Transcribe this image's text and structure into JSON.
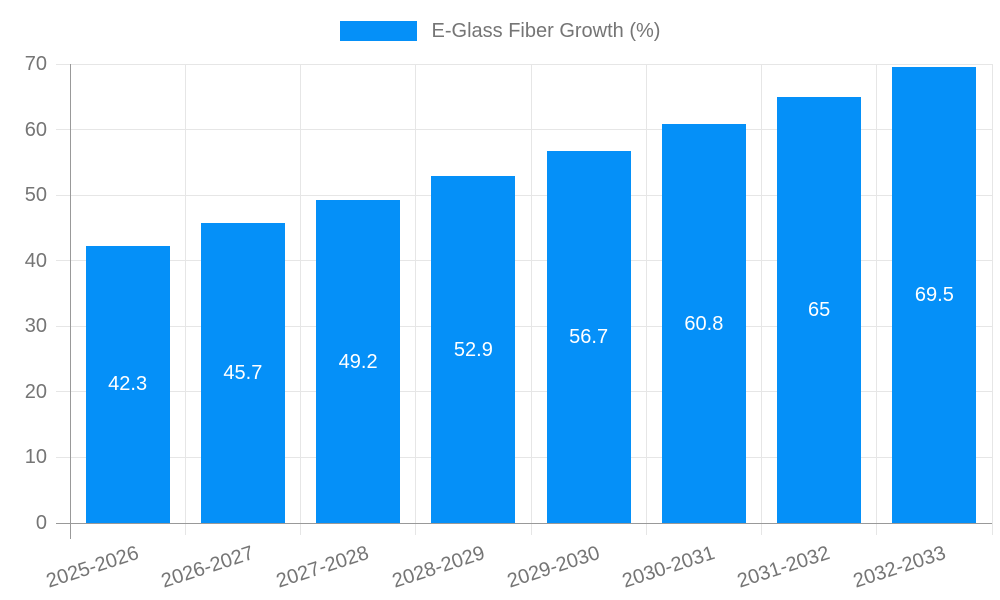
{
  "chart_data": {
    "type": "bar",
    "title": "E-Glass Fiber Growth (%)",
    "categories": [
      "2025-2026",
      "2026-2027",
      "2027-2028",
      "2028-2029",
      "2029-2030",
      "2030-2031",
      "2031-2032",
      "2032-2033"
    ],
    "values": [
      42.3,
      45.7,
      49.2,
      52.9,
      56.7,
      60.8,
      65,
      69.5
    ],
    "value_labels": [
      "42.3",
      "45.7",
      "49.2",
      "52.9",
      "56.7",
      "60.8",
      "65",
      "69.5"
    ],
    "xlabel": "",
    "ylabel": "",
    "ylim": [
      0,
      70
    ],
    "yticks": [
      0,
      10,
      20,
      30,
      40,
      50,
      60,
      70
    ],
    "grid": true,
    "legend_position": "top-center",
    "bar_color": "#0590f8",
    "bar_value_text_color": "#ffffff",
    "axis_text_color": "#757575",
    "gridline_color": "#e6e6e6",
    "axis_line_color": "#999999"
  }
}
